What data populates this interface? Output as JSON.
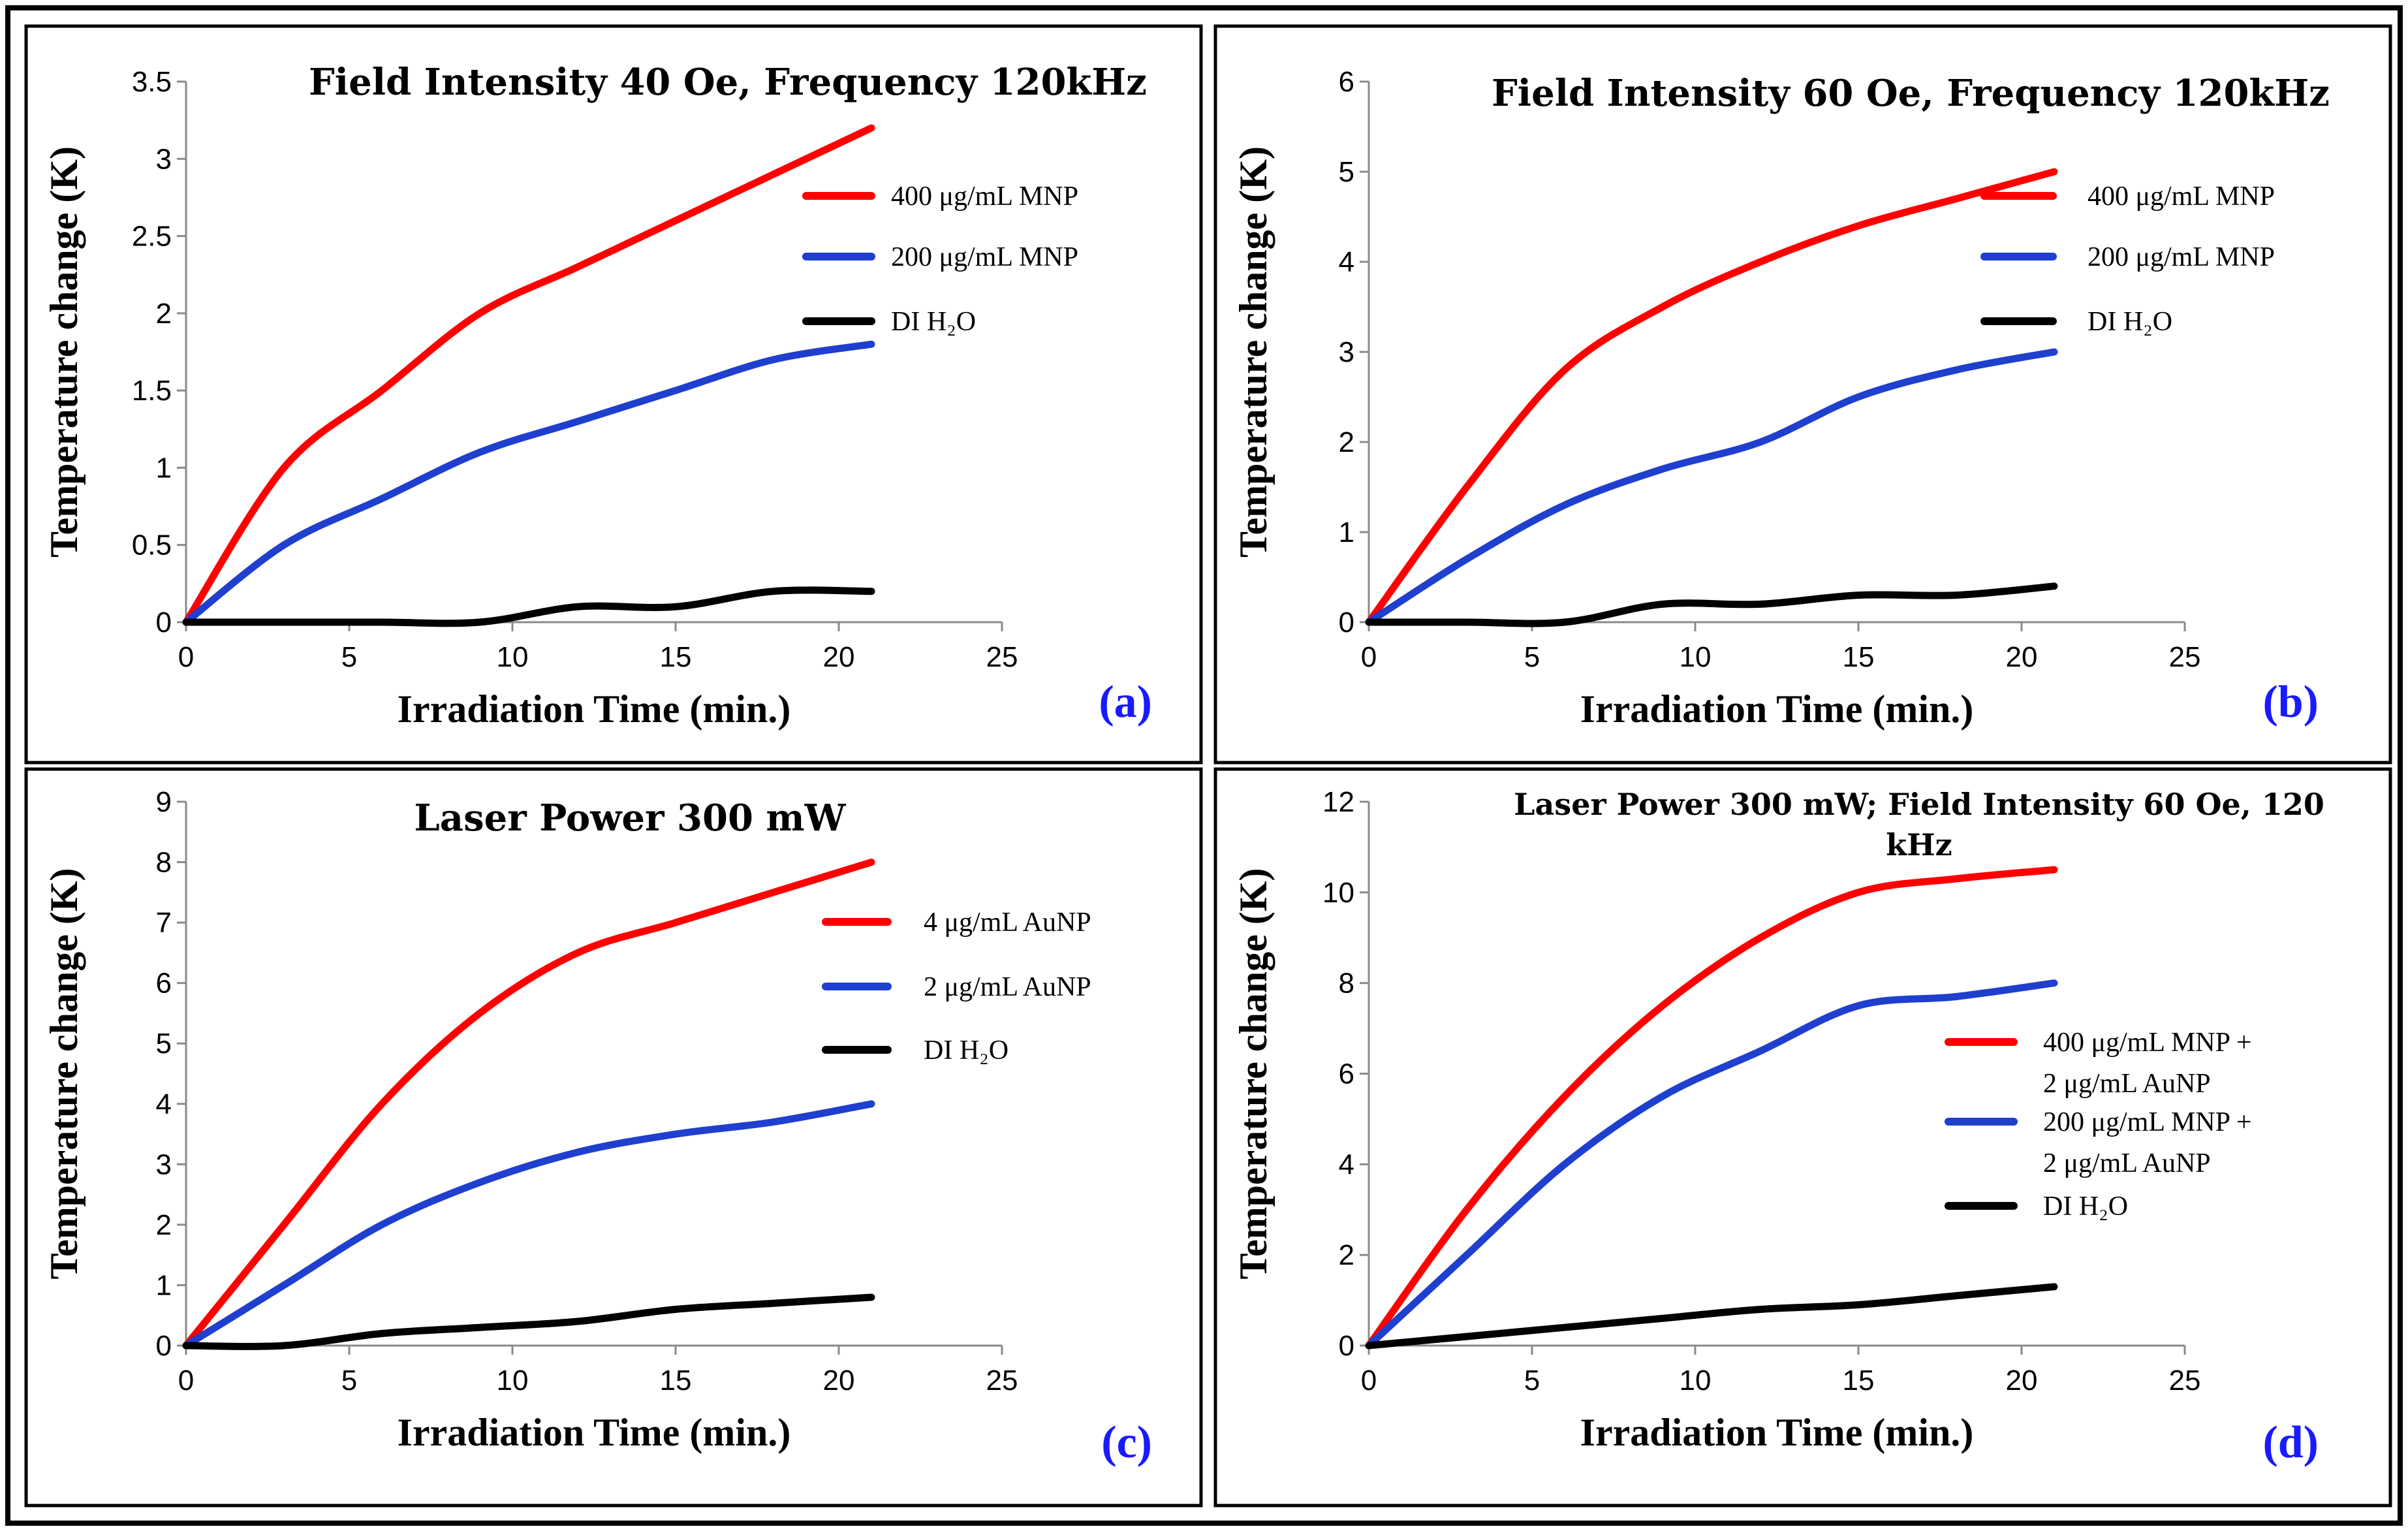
{
  "chart_data": [
    {
      "type": "line",
      "title_lines": [
        "Field Intensity 40 Oe, Frequency 120kHz"
      ],
      "xlabel": "Irradiation Time (min.)",
      "ylabel": "Temperature change (K)",
      "xlim": [
        0,
        25
      ],
      "ylim": [
        0,
        3.5
      ],
      "xticks": [
        "0",
        "5",
        "10",
        "15",
        "20",
        "25"
      ],
      "yticks": [
        "0",
        "0.5",
        "1",
        "1.5",
        "2",
        "2.5",
        "3",
        "3.5"
      ],
      "panel_label": "(a)",
      "series": [
        {
          "name": "400 μg/mL  MNP",
          "color": "#ff0000",
          "x": [
            0,
            3,
            6,
            9,
            12,
            15,
            18,
            21
          ],
          "y": [
            0,
            1.0,
            1.5,
            2.0,
            2.3,
            2.6,
            2.9,
            3.2
          ]
        },
        {
          "name": "200 μg/mL  MNP",
          "color": "#1f3fcf",
          "x": [
            0,
            3,
            6,
            9,
            12,
            15,
            18,
            21
          ],
          "y": [
            0,
            0.5,
            0.8,
            1.1,
            1.3,
            1.5,
            1.7,
            1.8
          ]
        },
        {
          "name": "DI H₂O",
          "color": "#000000",
          "x": [
            0,
            3,
            6,
            9,
            12,
            15,
            18,
            21
          ],
          "y": [
            0,
            0,
            0,
            0,
            0.1,
            0.1,
            0.2,
            0.2
          ]
        }
      ],
      "legend": [
        {
          "lines": [
            "400 μg/mL  MNP"
          ]
        },
        {
          "lines": [
            "200 μg/mL  MNP"
          ]
        },
        {
          "lines": [
            "DI H₂O"
          ]
        }
      ]
    },
    {
      "type": "line",
      "title_lines": [
        "Field Intensity 60 Oe, Frequency 120kHz"
      ],
      "xlabel": "Irradiation Time (min.)",
      "ylabel": "Temperature change (K)",
      "xlim": [
        0,
        25
      ],
      "ylim": [
        0,
        6
      ],
      "xticks": [
        "0",
        "5",
        "10",
        "15",
        "20",
        "25"
      ],
      "yticks": [
        "0",
        "1",
        "2",
        "3",
        "4",
        "5",
        "6"
      ],
      "panel_label": "(b)",
      "series": [
        {
          "name": "400 μg/mL  MNP",
          "color": "#ff0000",
          "x": [
            0,
            3,
            6,
            9,
            12,
            15,
            18,
            21
          ],
          "y": [
            0,
            1.5,
            2.8,
            3.5,
            4.0,
            4.4,
            4.7,
            5.0
          ]
        },
        {
          "name": "200 μg/mL  MNP",
          "color": "#1f3fcf",
          "x": [
            0,
            3,
            6,
            9,
            12,
            15,
            18,
            21
          ],
          "y": [
            0,
            0.7,
            1.3,
            1.7,
            2.0,
            2.5,
            2.8,
            3.0
          ]
        },
        {
          "name": "DI H₂O",
          "color": "#000000",
          "x": [
            0,
            3,
            6,
            9,
            12,
            15,
            18,
            21
          ],
          "y": [
            0,
            0,
            0,
            0.2,
            0.2,
            0.3,
            0.3,
            0.4
          ]
        }
      ],
      "legend": [
        {
          "lines": [
            "400 μg/mL  MNP"
          ]
        },
        {
          "lines": [
            "200 μg/mL  MNP"
          ]
        },
        {
          "lines": [
            "DI H₂O"
          ]
        }
      ]
    },
    {
      "type": "line",
      "title_lines": [
        "Laser Power 300 mW"
      ],
      "xlabel": "Irradiation Time (min.)",
      "ylabel": "Temperature change (K)",
      "xlim": [
        0,
        25
      ],
      "ylim": [
        0,
        9
      ],
      "xticks": [
        "0",
        "5",
        "10",
        "15",
        "20",
        "25"
      ],
      "yticks": [
        "0",
        "1",
        "2",
        "3",
        "4",
        "5",
        "6",
        "7",
        "8",
        "9"
      ],
      "panel_label": "(c)",
      "series": [
        {
          "name": "4 μg/mL  AuNP",
          "color": "#ff0000",
          "x": [
            0,
            3,
            6,
            9,
            12,
            15,
            18,
            21
          ],
          "y": [
            0,
            2.0,
            4.0,
            5.5,
            6.5,
            7.0,
            7.5,
            8.0
          ]
        },
        {
          "name": "2 μg/mL  AuNP",
          "color": "#1f3fcf",
          "x": [
            0,
            3,
            6,
            9,
            12,
            15,
            18,
            21
          ],
          "y": [
            0,
            1.0,
            2.0,
            2.7,
            3.2,
            3.5,
            3.7,
            4.0
          ]
        },
        {
          "name": "DI H₂O",
          "color": "#000000",
          "x": [
            0,
            3,
            6,
            9,
            12,
            15,
            18,
            21
          ],
          "y": [
            0,
            0,
            0.2,
            0.3,
            0.4,
            0.6,
            0.7,
            0.8
          ]
        }
      ],
      "legend": [
        {
          "lines": [
            "4 μg/mL  AuNP"
          ]
        },
        {
          "lines": [
            "2 μg/mL  AuNP"
          ]
        },
        {
          "lines": [
            "DI H₂O"
          ]
        }
      ]
    },
    {
      "type": "line",
      "title_lines": [
        "Laser Power 300 mW; Field Intensity 60 Oe, 120",
        "kHz"
      ],
      "xlabel": "Irradiation Time (min.)",
      "ylabel": "Temperature change (K)",
      "xlim": [
        0,
        25
      ],
      "ylim": [
        0,
        12
      ],
      "xticks": [
        "0",
        "5",
        "10",
        "15",
        "20",
        "25"
      ],
      "yticks": [
        "0",
        "2",
        "4",
        "6",
        "8",
        "10",
        "12"
      ],
      "panel_label": "(d)",
      "series": [
        {
          "name": "400 μg/mL MNP + 2 μg/mL AuNP",
          "color": "#ff0000",
          "x": [
            0,
            3,
            6,
            9,
            12,
            15,
            18,
            21
          ],
          "y": [
            0,
            3.0,
            5.5,
            7.5,
            9.0,
            10.0,
            10.3,
            10.5
          ]
        },
        {
          "name": "200 μg/mL MNP + 2 μg/mL AuNP",
          "color": "#1f3fcf",
          "x": [
            0,
            3,
            6,
            9,
            12,
            15,
            18,
            21
          ],
          "y": [
            0,
            2.0,
            4.0,
            5.5,
            6.5,
            7.5,
            7.7,
            8.0
          ]
        },
        {
          "name": "DI H₂O",
          "color": "#000000",
          "x": [
            0,
            3,
            6,
            9,
            12,
            15,
            18,
            21
          ],
          "y": [
            0,
            0.2,
            0.4,
            0.6,
            0.8,
            0.9,
            1.1,
            1.3
          ]
        }
      ],
      "legend": [
        {
          "lines": [
            "400 μg/mL  MNP +",
            "2 μg/mL  AuNP"
          ]
        },
        {
          "lines": [
            "200 μg/mL  MNP +",
            "2 μg/mL  AuNP"
          ]
        },
        {
          "lines": [
            "DI H₂O"
          ]
        }
      ]
    }
  ]
}
